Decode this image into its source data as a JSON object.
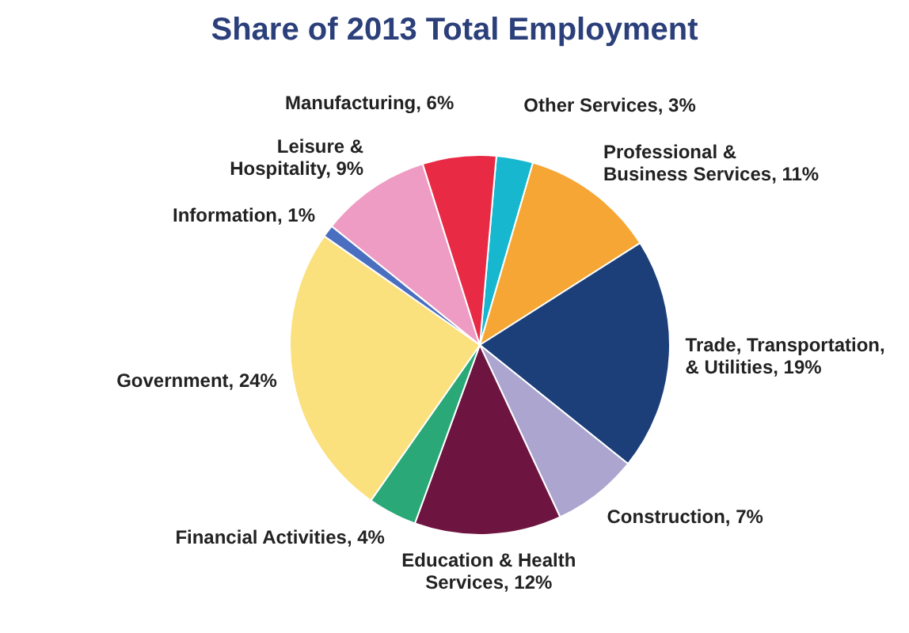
{
  "chart_data": {
    "type": "pie",
    "title": "Share of 2013 Total Employment",
    "categories": [
      "Other Services",
      "Professional & Business Services",
      "Trade, Transportation, & Utilities",
      "Construction",
      "Education & Health Services",
      "Financial Activities",
      "Government",
      "Information",
      "Leisure & Hospitality",
      "Manufacturing"
    ],
    "values": [
      3,
      11,
      19,
      7,
      12,
      4,
      24,
      1,
      9,
      6
    ],
    "value_labels": [
      "3%",
      "11%",
      "19%",
      "7%",
      "12%",
      "4%",
      "24%",
      "1%",
      "9%",
      "6%"
    ],
    "colors": [
      "#17b8cf",
      "#f5a634",
      "#1c3f7a",
      "#aba5d0",
      "#6e1440",
      "#2aa877",
      "#fbe07e",
      "#4a6fc0",
      "#ef9cc4",
      "#e82a45"
    ]
  }
}
